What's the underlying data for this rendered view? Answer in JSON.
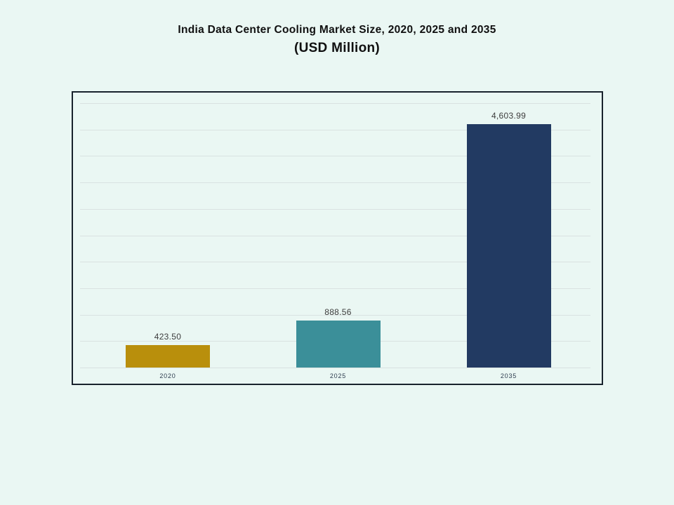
{
  "page": {
    "background": "#EAF7F3"
  },
  "title": {
    "line1": "India Data Center Cooling Market Size, 2020, 2025 and 2035",
    "line2": "(USD Million)"
  },
  "chart_data": {
    "type": "bar",
    "title": "India Data Center Cooling Market Size, 2020, 2025 and 2035",
    "subtitle": "(USD Million)",
    "categories": [
      "2020",
      "2025",
      "2035"
    ],
    "values": [
      423.5,
      888.56,
      4603.99
    ],
    "value_labels": [
      "423.50",
      "888.56",
      "4,603.99"
    ],
    "bar_colors": [
      "#B98F0C",
      "#3B8F99",
      "#223A62"
    ],
    "xlabel": "",
    "ylabel": "",
    "ylim": [
      0,
      5000
    ],
    "gridline_step": 500,
    "grid": "horizontal-only",
    "legend": "none",
    "y_axis_labels_shown": false,
    "colors": {
      "gridline": "#D9E2E1",
      "frame_border": "#18222C",
      "value_label": "#3D3D3D",
      "tick_label": "#2E3D4F"
    }
  }
}
